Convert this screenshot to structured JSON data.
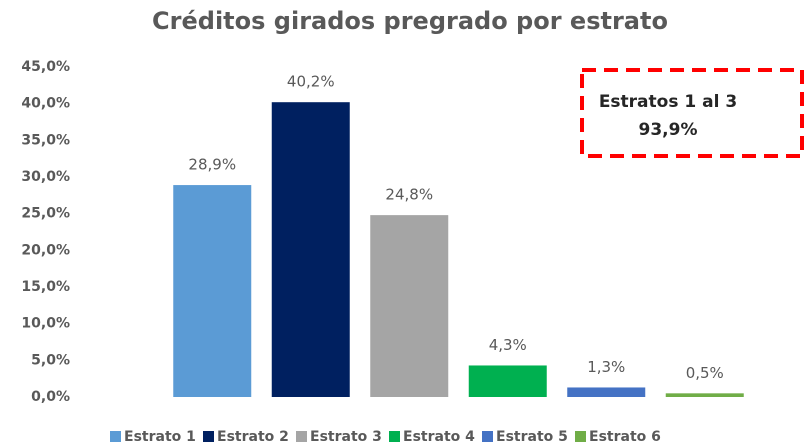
{
  "chart_data": {
    "type": "bar",
    "title": "Créditos girados pregrado por estrato",
    "series": [
      {
        "name": "Estrato 1",
        "color": "#5b9bd5",
        "values": [
          28.9
        ],
        "value_labels": [
          "28,9%"
        ]
      },
      {
        "name": "Estrato 2",
        "color": "#002060",
        "values": [
          40.2
        ],
        "value_labels": [
          "40,2%"
        ]
      },
      {
        "name": "Estrato 3",
        "color": "#a5a5a5",
        "values": [
          24.8
        ],
        "value_labels": [
          "24,8%"
        ]
      },
      {
        "name": "Estrato 4",
        "color": "#00b050",
        "values": [
          4.3
        ],
        "value_labels": [
          "4,3%"
        ]
      },
      {
        "name": "Estrato 5",
        "color": "#4472c4",
        "values": [
          1.3
        ],
        "value_labels": [
          "1,3%"
        ]
      },
      {
        "name": "Estrato 6",
        "color": "#70ad47",
        "values": [
          0.5
        ],
        "value_labels": [
          "0,5%"
        ]
      }
    ],
    "ylim": [
      0,
      45
    ],
    "yticks": [
      {
        "value": 0,
        "label": "0,0%"
      },
      {
        "value": 5,
        "label": "5,0%"
      },
      {
        "value": 10,
        "label": "10,0%"
      },
      {
        "value": 15,
        "label": "15,0%"
      },
      {
        "value": 20,
        "label": "20,0%"
      },
      {
        "value": 25,
        "label": "25,0%"
      },
      {
        "value": 30,
        "label": "30,0%"
      },
      {
        "value": 35,
        "label": "35,0%"
      },
      {
        "value": 40,
        "label": "40,0%"
      },
      {
        "value": 45,
        "label": "45,0%"
      }
    ],
    "grid": false,
    "legend": "bottom",
    "annotation": {
      "lines": [
        "Estratos 1 al 3",
        "93,9%"
      ]
    }
  }
}
